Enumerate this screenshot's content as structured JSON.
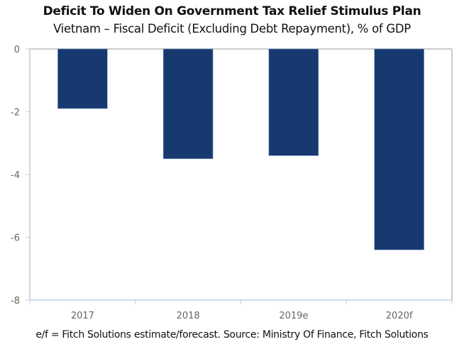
{
  "chart_data": {
    "type": "bar",
    "title": "Deficit To Widen On Government Tax Relief Stimulus Plan",
    "subtitle": "Vietnam – Fiscal Deficit (Excluding Debt Repayment), % of GDP",
    "categories": [
      "2017",
      "2018",
      "2019e",
      "2020f"
    ],
    "values": [
      -1.9,
      -3.5,
      -3.4,
      -6.4
    ],
    "xlabel": "",
    "ylabel": "",
    "ylim": [
      -8,
      0
    ],
    "yticks": [
      0,
      -2,
      -4,
      -6,
      -8
    ],
    "ytick_labels": [
      "0",
      "-2",
      "-4",
      "-6",
      "-8"
    ],
    "grid": false,
    "legend": null,
    "bar_color": "#163a70",
    "footnote": "e/f = Fitch Solutions estimate/forecast. Source: Ministry Of Finance, Fitch Solutions"
  }
}
